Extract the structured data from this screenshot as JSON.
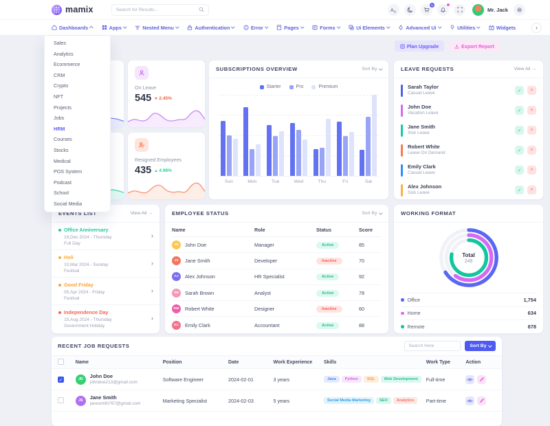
{
  "header": {
    "logo_text": "mamix",
    "search_placeholder": "Search for Results...",
    "cart_badge": "5",
    "user_name": "Mr. Jack"
  },
  "nav": {
    "items": [
      {
        "label": "Dashboards"
      },
      {
        "label": "Apps"
      },
      {
        "label": "Nested Menu"
      },
      {
        "label": "Authentication"
      },
      {
        "label": "Error"
      },
      {
        "label": "Pages"
      },
      {
        "label": "Forms"
      },
      {
        "label": "Ui Elements"
      },
      {
        "label": "Advanced Ui"
      },
      {
        "label": "Utilities"
      },
      {
        "label": "Widgets"
      }
    ],
    "more": "›"
  },
  "dashboards_menu": {
    "active_item": "HRM",
    "items": [
      "Sales",
      "Analytics",
      "Ecommerce",
      "CRM",
      "Crypto",
      "NFT",
      "Projects",
      "Jobs",
      "HRM",
      "Courses",
      "Stocks",
      "Medical",
      "POS System",
      "Podcast",
      "School",
      "Social Media"
    ]
  },
  "page_actions": {
    "plan_upgrade": "Plan Upgrade",
    "export_report": "Export Report"
  },
  "stat_cards": {
    "on_leave": {
      "label": "On Leave",
      "value": "545",
      "delta": "2.45%",
      "direction": "down",
      "icon_bg": "#f5e6fc",
      "icon_color": "#c35fe8"
    },
    "resigned": {
      "label": "Resigned Employees",
      "value": "435",
      "delta": "4.98%",
      "direction": "up",
      "icon_bg": "#fee5dc",
      "icon_color": "#f8683f"
    }
  },
  "subscriptions_panel": {
    "title": "SUBSCRIPTIONS OVERVIEW",
    "sort_label": "Sort By"
  },
  "leave_requests": {
    "title": "LEAVE REQUESTS",
    "view_all": "View All →",
    "items": [
      {
        "name": "Sarah Taylor",
        "type": "Casual Leave",
        "color": "#4a62e8"
      },
      {
        "name": "John Doe",
        "type": "Vacation Leave",
        "color": "#d269f0"
      },
      {
        "name": "Jane Smith",
        "type": "Sick Leave",
        "color": "#17c8a2"
      },
      {
        "name": "Robert White",
        "type": "Leave On Demand",
        "color": "#fa7850"
      },
      {
        "name": "Emily Clark",
        "type": "Casual Leave",
        "color": "#2e8bf7"
      },
      {
        "name": "Alex Johnson",
        "type": "Sick Leave",
        "color": "#fcaf45"
      }
    ]
  },
  "events_list": {
    "title": "EVENTS LIST",
    "view_all": "View All →",
    "items": [
      {
        "title": "Office Anniversary",
        "date": "19,Dec 2024 - Thursday",
        "type": "Full Day",
        "color": "#25c99d"
      },
      {
        "title": "Holi",
        "date": "10,Mar 2024 - Sunday",
        "type": "Festival",
        "color": "#fcaa33"
      },
      {
        "title": "Good Friday",
        "date": "05,Apr 2024 - Friday",
        "type": "Festival",
        "color": "#f9a13a"
      },
      {
        "title": "Independence Day",
        "date": "15,Aug 2024 - Thursday",
        "type": "Government Holiday",
        "color": "#f4604f"
      }
    ]
  },
  "employee_status": {
    "title": "EMPLOYEE STATUS",
    "sort_label": "Sort By",
    "headers": [
      "Name",
      "Role",
      "Status",
      "Score"
    ],
    "rows": [
      {
        "name": "John Doe",
        "initials": "JD",
        "role": "Manager",
        "status": "Active",
        "score": "85",
        "avatar_color": "#f9c852"
      },
      {
        "name": "Jane Smith",
        "initials": "JS",
        "role": "Developer",
        "status": "Inactive",
        "score": "70",
        "avatar_color": "#f4745e"
      },
      {
        "name": "Alex Johnson",
        "initials": "AJ",
        "role": "HR Specialist",
        "status": "Active",
        "score": "92",
        "avatar_color": "#7a6ff0"
      },
      {
        "name": "Sarah Brown",
        "initials": "SB",
        "role": "Analyst",
        "status": "Active",
        "score": "78",
        "avatar_color": "#f497b5"
      },
      {
        "name": "Robert White",
        "initials": "RW",
        "role": "Designer",
        "status": "Inactive",
        "score": "60",
        "avatar_color": "#ef5da8"
      },
      {
        "name": "Emily Clark",
        "initials": "EC",
        "role": "Accountant",
        "status": "Active",
        "score": "88",
        "avatar_color": "#f2708a"
      }
    ]
  },
  "working_format": {
    "title": "WORKING FORMAT",
    "total_label": "Total",
    "total_value": "249",
    "legend": [
      {
        "label": "Office",
        "value": "1,754",
        "color": "#5b67f1"
      },
      {
        "label": "Home",
        "value": "634",
        "color": "#d46af2"
      },
      {
        "label": "Remote",
        "value": "878",
        "color": "#12c79e"
      }
    ]
  },
  "job_requests": {
    "title": "RECENT JOB REQUESTS",
    "search_placeholder": "Search Here",
    "sort_button": "Sort By",
    "headers": [
      "Name",
      "Position",
      "Date",
      "Work Experience",
      "Skills",
      "Work Type",
      "Action"
    ],
    "rows": [
      {
        "name": "John Doe",
        "initials": "JD",
        "email": "johndoe213@gmail.com",
        "position": "Software Engineer",
        "date": "2024-02-01",
        "experience": "3 years",
        "work_type": "Full-time",
        "checked": true,
        "avatar_color": "#35d073",
        "skills": [
          {
            "label": "Java",
            "bg": "#e3ecfd",
            "fg": "#4a7df0"
          },
          {
            "label": "Python",
            "bg": "#f7e7fb",
            "fg": "#cf64e8"
          },
          {
            "label": "SQL",
            "bg": "#fdeede",
            "fg": "#f29a3f"
          },
          {
            "label": "Web Development",
            "bg": "#dcf8ee",
            "fg": "#21bd92"
          }
        ]
      },
      {
        "name": "Jane Smith",
        "initials": "JS",
        "email": "janesmith767@gmail.com",
        "position": "Marketing Specialist",
        "date": "2024-02-03",
        "experience": "5 years",
        "work_type": "Part-time",
        "checked": false,
        "avatar_color": "#b06ff2",
        "skills": [
          {
            "label": "Social Media Marketing",
            "bg": "#e0f2fc",
            "fg": "#2d9fe8"
          },
          {
            "label": "SEO",
            "bg": "#dcf8ee",
            "fg": "#21bd92"
          },
          {
            "label": "Analytics",
            "bg": "#fde7e3",
            "fg": "#f4735f"
          }
        ]
      }
    ]
  },
  "chart_data": [
    {
      "type": "bar",
      "title": "Subscriptions Overview",
      "categories": [
        "Sun",
        "Mon",
        "Tue",
        "Wed",
        "Thu",
        "Fri",
        "Sat"
      ],
      "series": [
        {
          "name": "Starter",
          "color": "#6272f3",
          "values": [
            68,
            85,
            63,
            65,
            33,
            67,
            32
          ]
        },
        {
          "name": "Pro",
          "color": "#98a4f6",
          "values": [
            50,
            33,
            49,
            57,
            35,
            49,
            73
          ]
        },
        {
          "name": "Premium",
          "color": "#dee3fc",
          "values": [
            46,
            39,
            55,
            45,
            70,
            54,
            100
          ]
        }
      ],
      "ylim": [
        0,
        100
      ],
      "legend_position": "top",
      "grid": "dotted-horizontal"
    },
    {
      "type": "radial",
      "title": "Working Format",
      "center_label": "Total",
      "center_value": "249",
      "series": [
        {
          "name": "Office",
          "value": 1754,
          "arc_percent": 66,
          "color": "#5b67f1"
        },
        {
          "name": "Home",
          "value": 634,
          "arc_percent": 60,
          "color": "#d46af2"
        },
        {
          "name": "Remote",
          "value": 878,
          "arc_percent": 78,
          "color": "#12c79e"
        }
      ]
    },
    {
      "type": "area",
      "title": "On Leave trend",
      "values": [
        8,
        13,
        9,
        10,
        24,
        20,
        10,
        9,
        12,
        11,
        25,
        28,
        12
      ],
      "color": "#c98af2",
      "fill": "#f6ecfd"
    },
    {
      "type": "area",
      "title": "Resigned Employees trend",
      "values": [
        10,
        15,
        11,
        10,
        22,
        26,
        14,
        11,
        13,
        10,
        26,
        30,
        13
      ],
      "color": "#fb9273",
      "fill": "#fdeee8"
    },
    {
      "type": "area",
      "title": "hidden card trend 1",
      "values": [
        6,
        14,
        22,
        14,
        8,
        12,
        7
      ],
      "color": "#7b8cf3",
      "fill": "#e9edfe"
    },
    {
      "type": "area",
      "title": "hidden card trend 2",
      "values": [
        6,
        12,
        22,
        12,
        7,
        13,
        8
      ],
      "color": "#3fd9b5",
      "fill": "#e2faf4"
    }
  ]
}
